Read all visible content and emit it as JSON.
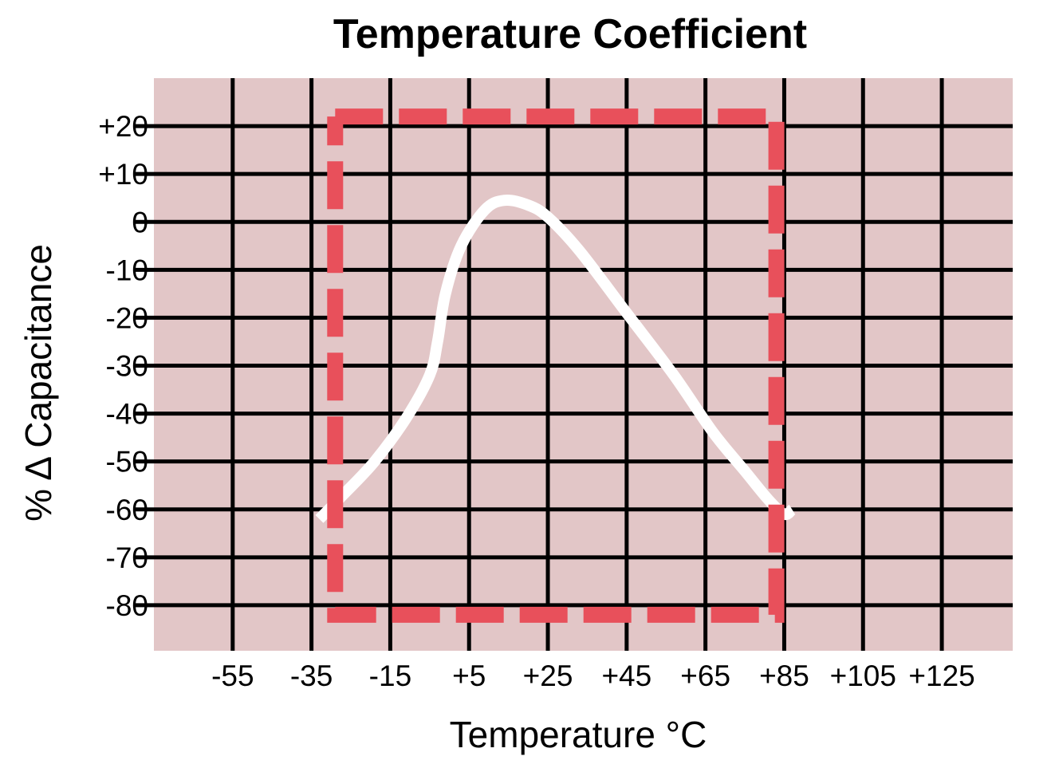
{
  "chart_data": {
    "type": "line",
    "title": "Temperature Coefficient",
    "xlabel": "Temperature °C",
    "ylabel": "% Δ Capacitance",
    "x_ticks": [
      -55,
      -35,
      -15,
      5,
      25,
      45,
      65,
      85,
      105,
      125
    ],
    "x_tick_labels": [
      "-55",
      "-35",
      "-15",
      "+5",
      "+25",
      "+45",
      "+65",
      "+85",
      "+105",
      "+125"
    ],
    "y_ticks": [
      20,
      10,
      0,
      -10,
      -20,
      -30,
      -40,
      -50,
      -60,
      -70,
      -80
    ],
    "y_tick_labels": [
      "+20",
      "+10",
      "0",
      "-10",
      "-20",
      "-30",
      "-40",
      "-50",
      "-60",
      "-70",
      "-80"
    ],
    "xlim": [
      -75,
      143
    ],
    "ylim": [
      -89.5,
      30
    ],
    "grid": true,
    "series": [
      {
        "color": "#ffffff",
        "style": "solid",
        "x": [
          -33,
          -27,
          -19,
          -11,
          -5,
          -3,
          -1,
          3,
          9,
          14,
          20,
          25,
          33,
          45,
          57,
          67,
          75,
          81,
          85,
          87
        ],
        "y": [
          -62,
          -57,
          -50,
          -41,
          -32,
          -25,
          -15,
          -5,
          2.5,
          4.5,
          3.5,
          1,
          -6,
          -19,
          -32,
          -44,
          -52,
          -58,
          -61,
          -60
        ]
      },
      {
        "color": "#e8505b",
        "style": "dashed",
        "x": [
          -29,
          83,
          83,
          -29,
          -29
        ],
        "y": [
          22,
          22,
          -82,
          -82,
          22
        ]
      }
    ]
  },
  "colors": {
    "plot_background": "#e2c6c7",
    "grid": "#000000",
    "curve": "#ffffff",
    "limit_box": "#e8505b"
  }
}
